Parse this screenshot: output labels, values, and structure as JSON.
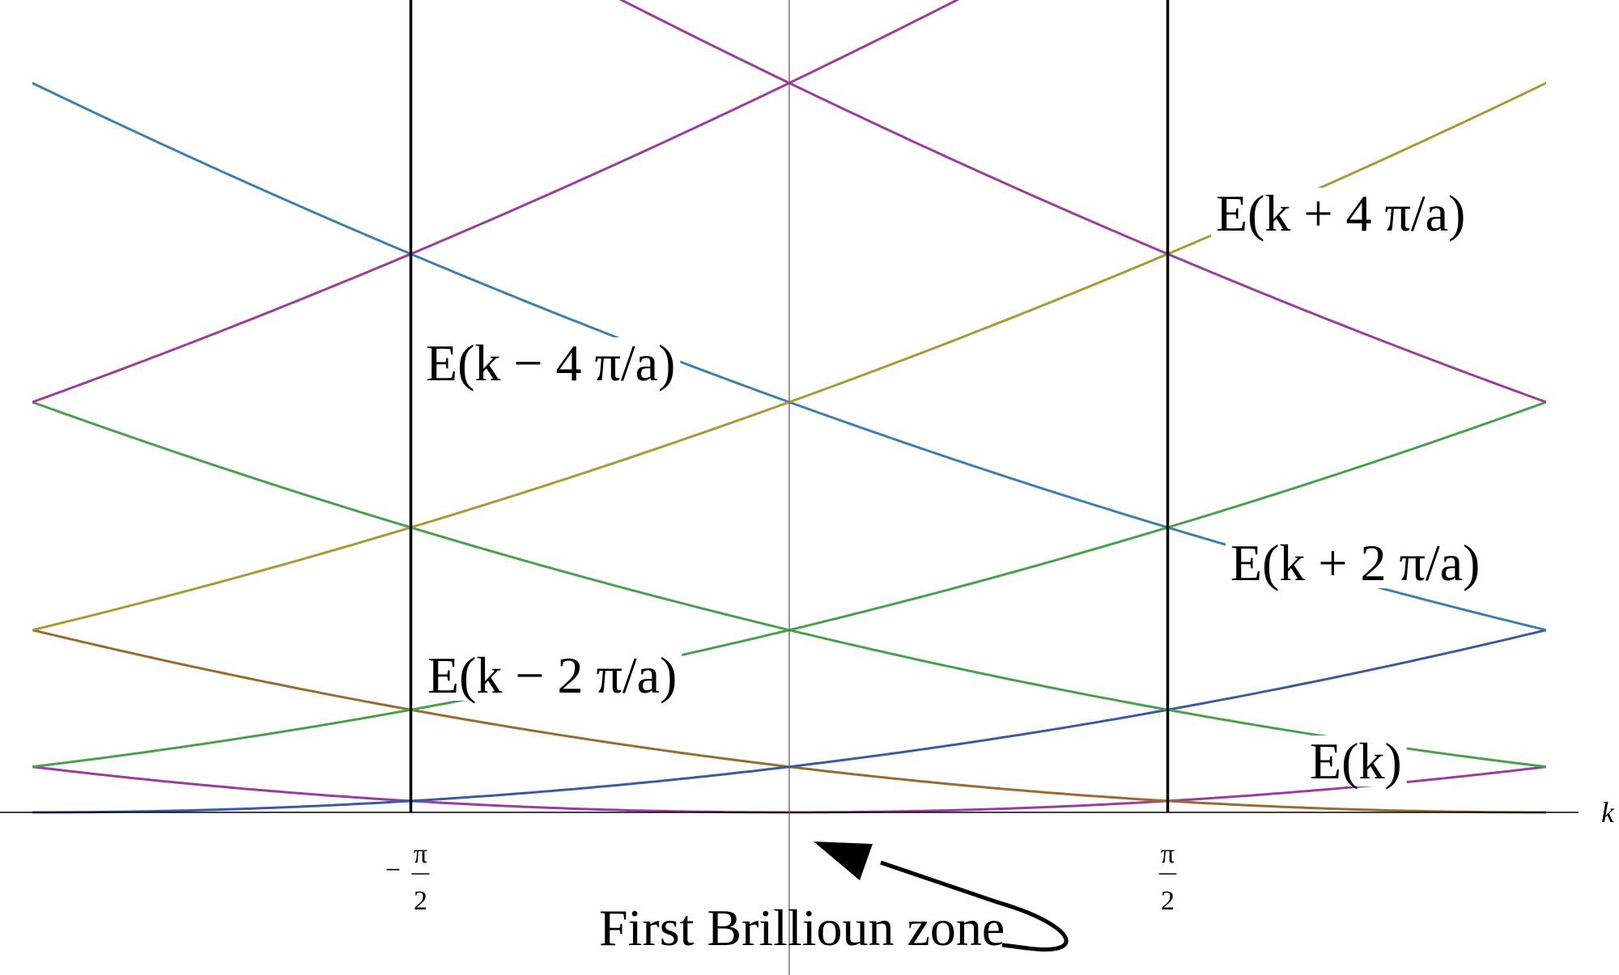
{
  "chart_data": {
    "type": "line",
    "xlabel": "k",
    "xlim": [
      -1,
      1
    ],
    "ylim": [
      0,
      4.3
    ],
    "band_edges": [
      -0.5,
      0.5
    ],
    "tick_labels": {
      "left": {
        "sign": "−",
        "num": "π",
        "den": "2"
      },
      "right": {
        "num": "π",
        "den": "2"
      }
    },
    "zone_label": "First Brillioun zone",
    "series": [
      {
        "key": "E0",
        "shift": 0,
        "color": "#9b3c9e"
      },
      {
        "key": "Em2",
        "shift": -1,
        "color": "#9a6a30"
      },
      {
        "key": "Ep2",
        "shift": 1,
        "color": "#3c5aa0"
      },
      {
        "key": "Em4",
        "shift": -2,
        "color": "#4aa04a"
      },
      {
        "key": "Ep4",
        "shift": 2,
        "color": "#4aa04a"
      },
      {
        "key": "Em6",
        "shift": -3,
        "color": "#3f7fb0"
      },
      {
        "key": "Ep6",
        "shift": 3,
        "color": "#a89a35"
      },
      {
        "key": "Em8",
        "shift": -4,
        "color": "#9b3c9e"
      },
      {
        "key": "Ep8",
        "shift": 4,
        "color": "#9b3c9e"
      }
    ],
    "curve_labels": [
      {
        "text": "E(k)",
        "at_x": 0.73,
        "on": "Ep2_alt"
      },
      {
        "text": "E(k − 2 π/a)",
        "at_x": -0.47,
        "on": "Em2"
      },
      {
        "text": "E(k + 2 π/a)",
        "at_x": 0.58,
        "on": "Ep2"
      },
      {
        "text": "E(k − 4 π/a)",
        "at_x": -0.47,
        "on": "Em4"
      },
      {
        "text": "E(k + 4 π/a)",
        "at_x": 0.56,
        "on": "Ep4"
      }
    ]
  }
}
